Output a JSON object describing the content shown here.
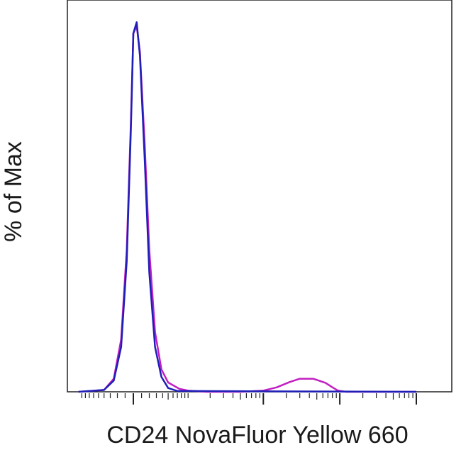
{
  "chart_data": {
    "type": "line",
    "title": "",
    "xlabel": "CD24 NovaFluor Yellow 660",
    "ylabel": "% of Max",
    "x_scale": "biexponential",
    "xlim": [
      -100,
      100000
    ],
    "ylim": [
      0,
      100
    ],
    "x_major_ticks": [
      0,
      1000,
      10000,
      100000
    ],
    "grid": false,
    "legend": "none",
    "series": [
      {
        "color": "#1f1fb8",
        "points": [
          [
            -100,
            0
          ],
          [
            -40,
            0.5
          ],
          [
            -25,
            3
          ],
          [
            -15,
            12
          ],
          [
            -8,
            35
          ],
          [
            -3,
            70
          ],
          [
            0,
            96
          ],
          [
            4,
            99
          ],
          [
            8,
            90
          ],
          [
            14,
            62
          ],
          [
            20,
            32
          ],
          [
            28,
            12
          ],
          [
            38,
            4
          ],
          [
            50,
            1
          ],
          [
            70,
            0.2
          ],
          [
            100000,
            0
          ]
        ]
      },
      {
        "color": "#c21fc2",
        "points": [
          [
            -100,
            0
          ],
          [
            -40,
            0.5
          ],
          [
            -25,
            3.5
          ],
          [
            -15,
            14
          ],
          [
            -8,
            38
          ],
          [
            -3,
            72
          ],
          [
            0,
            96
          ],
          [
            4,
            98
          ],
          [
            8,
            91
          ],
          [
            14,
            66
          ],
          [
            20,
            38
          ],
          [
            28,
            16
          ],
          [
            38,
            6
          ],
          [
            50,
            2.5
          ],
          [
            75,
            0.8
          ],
          [
            100,
            0.3
          ],
          [
            180,
            0
          ],
          [
            500,
            0
          ],
          [
            1000,
            0.3
          ],
          [
            1500,
            1.2
          ],
          [
            2200,
            2.6
          ],
          [
            3000,
            3.5
          ],
          [
            4500,
            3.5
          ],
          [
            6500,
            2.4
          ],
          [
            8000,
            1.2
          ],
          [
            9500,
            0.3
          ],
          [
            12000,
            0
          ],
          [
            100000,
            0
          ]
        ]
      }
    ]
  }
}
